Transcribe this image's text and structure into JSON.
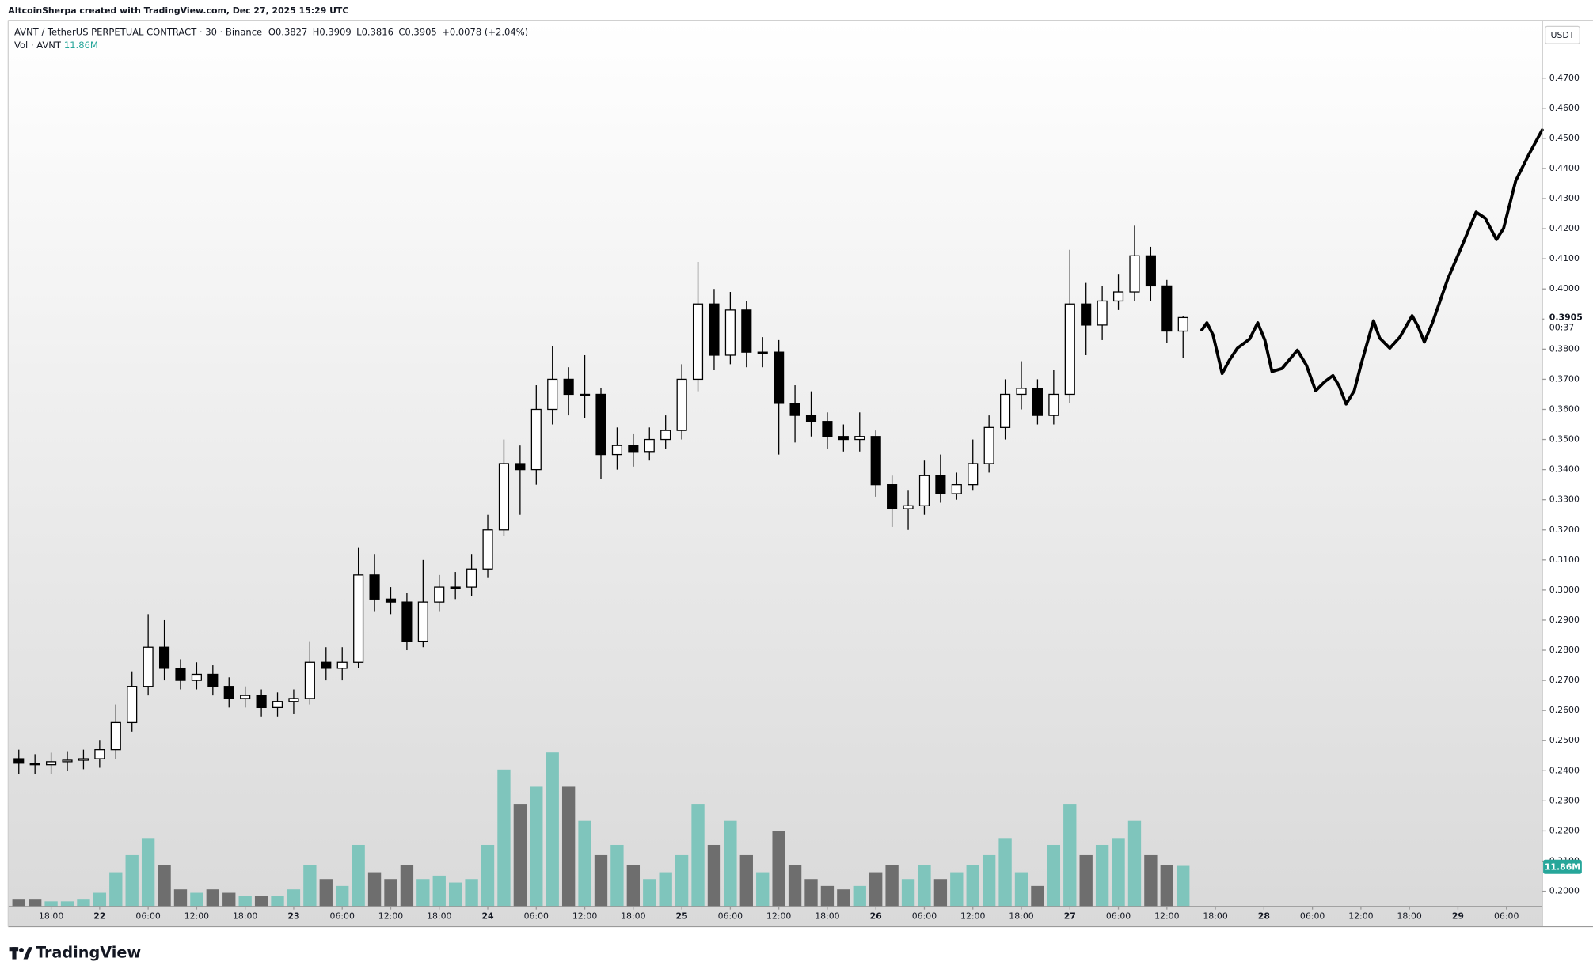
{
  "header": {
    "attribution": "AltcoinSherpa created with TradingView.com, Dec 27, 2025 15:29 UTC",
    "brand": "TradingView"
  },
  "chart_data": {
    "type": "candlestick",
    "symbol": "AVNT / TetherUS PERPETUAL CONTRACT · 30 · Binance",
    "ohlc_legend": [
      "O0.3827",
      "H0.3909",
      "L0.3816",
      "C0.3905"
    ],
    "change": "+0.0078 (+2.04%)",
    "volume_legend": "Vol · AVNT",
    "volume_last_label": "11.86M",
    "currency": "USDT",
    "last_price_label": "0.3905",
    "countdown": "00:37",
    "x": [
      "21 14:00",
      "21 16:00",
      "21 18:00",
      "21 20:00",
      "21 22:00",
      "22 00:00",
      "22 02:00",
      "22 04:00",
      "22 06:00",
      "22 08:00",
      "22 10:00",
      "22 12:00",
      "22 14:00",
      "22 16:00",
      "22 18:00",
      "22 20:00",
      "22 22:00",
      "23 00:00",
      "23 02:00",
      "23 04:00",
      "23 06:00",
      "23 08:00",
      "23 10:00",
      "23 12:00",
      "23 14:00",
      "23 16:00",
      "23 18:00",
      "23 20:00",
      "23 22:00",
      "24 00:00",
      "24 02:00",
      "24 04:00",
      "24 06:00",
      "24 08:00",
      "24 10:00",
      "24 12:00",
      "24 14:00",
      "24 16:00",
      "24 18:00",
      "24 20:00",
      "24 22:00",
      "25 00:00",
      "25 02:00",
      "25 04:00",
      "25 06:00",
      "25 08:00",
      "25 10:00",
      "25 12:00",
      "25 14:00",
      "25 16:00",
      "25 18:00",
      "25 20:00",
      "25 22:00",
      "26 00:00",
      "26 02:00",
      "26 04:00",
      "26 06:00",
      "26 08:00",
      "26 10:00",
      "26 12:00",
      "26 14:00",
      "26 16:00",
      "26 18:00",
      "26 20:00",
      "26 22:00",
      "27 00:00",
      "27 02:00",
      "27 04:00",
      "27 06:00",
      "27 08:00",
      "27 10:00",
      "27 12:00",
      "27 14:00"
    ],
    "open": [
      0.244,
      0.2425,
      0.242,
      0.243,
      0.2435,
      0.244,
      0.247,
      0.256,
      0.268,
      0.281,
      0.274,
      0.27,
      0.272,
      0.268,
      0.264,
      0.265,
      0.261,
      0.263,
      0.264,
      0.276,
      0.274,
      0.276,
      0.305,
      0.297,
      0.296,
      0.283,
      0.296,
      0.301,
      0.301,
      0.307,
      0.32,
      0.342,
      0.34,
      0.36,
      0.37,
      0.365,
      0.365,
      0.345,
      0.348,
      0.346,
      0.35,
      0.353,
      0.37,
      0.395,
      0.378,
      0.393,
      0.379,
      0.379,
      0.362,
      0.358,
      0.356,
      0.351,
      0.35,
      0.351,
      0.335,
      0.327,
      0.328,
      0.338,
      0.332,
      0.335,
      0.342,
      0.354,
      0.365,
      0.367,
      0.358,
      0.365,
      0.395,
      0.388,
      0.396,
      0.399,
      0.411,
      0.401,
      0.386
    ],
    "high": [
      0.247,
      0.2455,
      0.246,
      0.2465,
      0.247,
      0.25,
      0.262,
      0.273,
      0.292,
      0.29,
      0.277,
      0.276,
      0.275,
      0.271,
      0.268,
      0.267,
      0.266,
      0.267,
      0.283,
      0.281,
      0.281,
      0.314,
      0.312,
      0.301,
      0.299,
      0.31,
      0.305,
      0.306,
      0.312,
      0.325,
      0.35,
      0.348,
      0.368,
      0.381,
      0.374,
      0.378,
      0.367,
      0.354,
      0.352,
      0.354,
      0.358,
      0.375,
      0.409,
      0.4,
      0.399,
      0.396,
      0.384,
      0.383,
      0.368,
      0.366,
      0.359,
      0.355,
      0.359,
      0.353,
      0.338,
      0.333,
      0.343,
      0.345,
      0.339,
      0.35,
      0.358,
      0.37,
      0.376,
      0.37,
      0.373,
      0.413,
      0.402,
      0.401,
      0.405,
      0.421,
      0.414,
      0.403,
      0.391
    ],
    "low": [
      0.239,
      0.239,
      0.239,
      0.24,
      0.2405,
      0.241,
      0.244,
      0.253,
      0.265,
      0.27,
      0.267,
      0.267,
      0.265,
      0.261,
      0.261,
      0.258,
      0.258,
      0.259,
      0.262,
      0.27,
      0.27,
      0.274,
      0.293,
      0.292,
      0.28,
      0.281,
      0.293,
      0.297,
      0.298,
      0.304,
      0.318,
      0.325,
      0.335,
      0.355,
      0.358,
      0.357,
      0.337,
      0.34,
      0.341,
      0.343,
      0.347,
      0.35,
      0.366,
      0.373,
      0.375,
      0.374,
      0.374,
      0.345,
      0.349,
      0.351,
      0.347,
      0.346,
      0.346,
      0.331,
      0.321,
      0.32,
      0.325,
      0.329,
      0.33,
      0.333,
      0.339,
      0.35,
      0.36,
      0.355,
      0.355,
      0.362,
      0.378,
      0.383,
      0.393,
      0.396,
      0.396,
      0.382,
      0.377
    ],
    "close": [
      0.2425,
      0.242,
      0.243,
      0.2435,
      0.244,
      0.247,
      0.256,
      0.268,
      0.281,
      0.274,
      0.27,
      0.272,
      0.268,
      0.264,
      0.265,
      0.261,
      0.263,
      0.264,
      0.276,
      0.274,
      0.276,
      0.305,
      0.297,
      0.296,
      0.283,
      0.296,
      0.301,
      0.301,
      0.307,
      0.32,
      0.342,
      0.34,
      0.36,
      0.37,
      0.365,
      0.365,
      0.345,
      0.348,
      0.346,
      0.35,
      0.353,
      0.37,
      0.395,
      0.378,
      0.393,
      0.379,
      0.379,
      0.362,
      0.358,
      0.356,
      0.351,
      0.35,
      0.351,
      0.335,
      0.327,
      0.328,
      0.338,
      0.332,
      0.335,
      0.342,
      0.354,
      0.365,
      0.367,
      0.358,
      0.365,
      0.395,
      0.388,
      0.396,
      0.399,
      0.411,
      0.401,
      0.386,
      0.3905
    ],
    "volume": [
      2,
      2,
      1.5,
      1.5,
      2,
      4,
      10,
      15,
      20,
      12,
      5,
      4,
      5,
      4,
      3,
      3,
      3,
      5,
      12,
      8,
      6,
      18,
      10,
      8,
      12,
      8,
      9,
      7,
      8,
      18,
      40,
      30,
      35,
      45,
      35,
      25,
      15,
      18,
      12,
      8,
      10,
      15,
      30,
      18,
      25,
      15,
      10,
      22,
      12,
      8,
      6,
      5,
      6,
      10,
      12,
      8,
      12,
      8,
      10,
      12,
      15,
      20,
      10,
      6,
      18,
      30,
      15,
      18,
      20,
      25,
      15,
      12,
      11.86
    ],
    "up_color": "#ffffff",
    "down_color": "#000000",
    "volume_up_color": "#7fc5bc",
    "volume_down_color": "#6e6e6e",
    "xlim": [
      "21 12:41",
      "29 10:25"
    ],
    "xticks": [
      {
        "value": "21 18:00",
        "label": "18:00"
      },
      {
        "value": "22 00:00",
        "label": "22"
      },
      {
        "value": "22 06:00",
        "label": "06:00"
      },
      {
        "value": "22 12:00",
        "label": "12:00"
      },
      {
        "value": "22 18:00",
        "label": "18:00"
      },
      {
        "value": "23 00:00",
        "label": "23"
      },
      {
        "value": "23 06:00",
        "label": "06:00"
      },
      {
        "value": "23 12:00",
        "label": "12:00"
      },
      {
        "value": "23 18:00",
        "label": "18:00"
      },
      {
        "value": "24 00:00",
        "label": "24"
      },
      {
        "value": "24 06:00",
        "label": "06:00"
      },
      {
        "value": "24 12:00",
        "label": "12:00"
      },
      {
        "value": "24 18:00",
        "label": "18:00"
      },
      {
        "value": "25 00:00",
        "label": "25"
      },
      {
        "value": "25 06:00",
        "label": "06:00"
      },
      {
        "value": "25 12:00",
        "label": "12:00"
      },
      {
        "value": "25 18:00",
        "label": "18:00"
      },
      {
        "value": "26 00:00",
        "label": "26"
      },
      {
        "value": "26 06:00",
        "label": "06:00"
      },
      {
        "value": "26 12:00",
        "label": "12:00"
      },
      {
        "value": "26 18:00",
        "label": "18:00"
      },
      {
        "value": "27 00:00",
        "label": "27"
      },
      {
        "value": "27 06:00",
        "label": "06:00"
      },
      {
        "value": "27 12:00",
        "label": "12:00"
      },
      {
        "value": "27 18:00",
        "label": "18:00"
      },
      {
        "value": "28 00:00",
        "label": "28"
      },
      {
        "value": "28 06:00",
        "label": "06:00"
      },
      {
        "value": "28 12:00",
        "label": "12:00"
      },
      {
        "value": "28 18:00",
        "label": "18:00"
      },
      {
        "value": "29 00:00",
        "label": "29"
      },
      {
        "value": "29 06:00",
        "label": "06:00"
      }
    ],
    "ylim": [
      0.1882,
      0.4892
    ],
    "yticks": [
      {
        "value": 0.2,
        "label": "0.2000"
      },
      {
        "value": 0.21,
        "label": "0.2100"
      },
      {
        "value": 0.22,
        "label": "0.2200"
      },
      {
        "value": 0.23,
        "label": "0.2300"
      },
      {
        "value": 0.24,
        "label": "0.2400"
      },
      {
        "value": 0.25,
        "label": "0.2500"
      },
      {
        "value": 0.26,
        "label": "0.2600"
      },
      {
        "value": 0.27,
        "label": "0.2700"
      },
      {
        "value": 0.28,
        "label": "0.2800"
      },
      {
        "value": 0.29,
        "label": "0.2900"
      },
      {
        "value": 0.3,
        "label": "0.3000"
      },
      {
        "value": 0.31,
        "label": "0.3100"
      },
      {
        "value": 0.32,
        "label": "0.3200"
      },
      {
        "value": 0.33,
        "label": "0.3300"
      },
      {
        "value": 0.34,
        "label": "0.3400"
      },
      {
        "value": 0.35,
        "label": "0.3500"
      },
      {
        "value": 0.36,
        "label": "0.3600"
      },
      {
        "value": 0.37,
        "label": "0.3700"
      },
      {
        "value": 0.38,
        "label": "0.3800"
      },
      {
        "value": 0.39,
        "label": "0.3900"
      },
      {
        "value": 0.4,
        "label": "0.4000"
      },
      {
        "value": 0.41,
        "label": "0.4100"
      },
      {
        "value": 0.42,
        "label": "0.4200"
      },
      {
        "value": 0.43,
        "label": "0.4300"
      },
      {
        "value": 0.44,
        "label": "0.4400"
      },
      {
        "value": 0.45,
        "label": "0.4500"
      },
      {
        "value": 0.46,
        "label": "0.4600"
      },
      {
        "value": 0.47,
        "label": "0.4700"
      }
    ],
    "volume_ylim": [
      0,
      259
    ]
  }
}
